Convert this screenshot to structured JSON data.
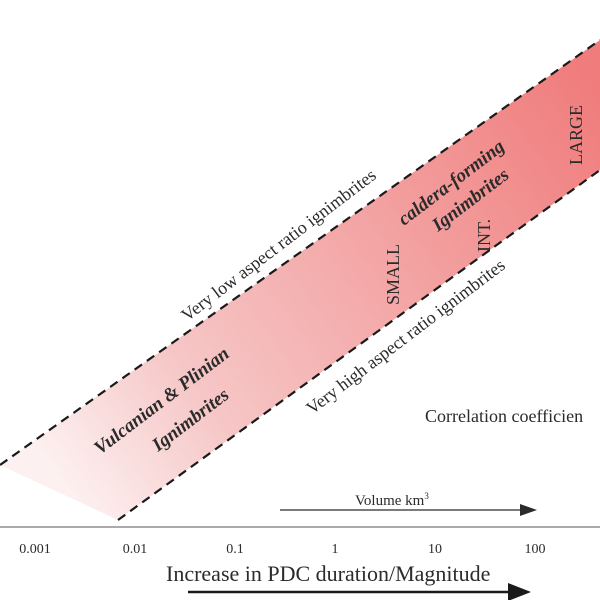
{
  "band": {
    "upper_label": "Very low aspect ratio ignimbrites",
    "lower_label": "Very high aspect ratio ignimbrites",
    "color_light": "#fdf0f0",
    "color_dark": "#f07c7c",
    "boundary_color": "#1a1a1a"
  },
  "groups": {
    "vulcanian_line1": "Vulcanian & Plinian",
    "vulcanian_line2": "Ignimbrites",
    "caldera_line1": "caldera-forming",
    "caldera_line2": "Ignimbrites"
  },
  "size_classes": {
    "small": "SMALL",
    "intermediate": "INT.",
    "large": "LARGE"
  },
  "correlation_label": "Correlation coefficien",
  "volume_arrow": {
    "label": "Volume km",
    "superscript": "3"
  },
  "x_axis": {
    "ticks": [
      "0.001",
      "0.01",
      "0.1",
      "1",
      "10",
      "100"
    ],
    "title": "Increase in PDC duration/Magnitude"
  }
}
